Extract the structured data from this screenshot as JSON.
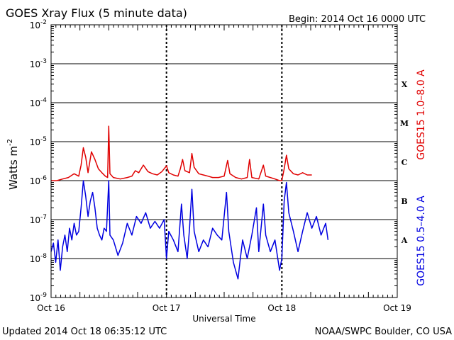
{
  "header": {
    "title": "GOES Xray Flux (5 minute data)",
    "begin": "Begin:  2014 Oct 16 0000 UTC"
  },
  "footer": {
    "updated": "Updated 2014 Oct 18 06:35:12 UTC",
    "source": "NOAA/SWPC Boulder, CO USA"
  },
  "chart_data": {
    "type": "line",
    "title": "GOES Xray Flux (5 minute data)",
    "xlabel": "Universal Time",
    "ylabel": "Watts m",
    "ylabel_exp": "-2",
    "yscale": "log",
    "ylim": [
      1e-09,
      0.01
    ],
    "xlim_days": [
      0,
      3
    ],
    "x_ticks": [
      {
        "label": "Oct 16",
        "day": 0
      },
      {
        "label": "Oct 17",
        "day": 1
      },
      {
        "label": "Oct 18",
        "day": 2
      },
      {
        "label": "Oct 19",
        "day": 3
      }
    ],
    "y_ticks": [
      {
        "base": "10",
        "exp": "-9",
        "value": 1e-09
      },
      {
        "base": "10",
        "exp": "-8",
        "value": 1e-08
      },
      {
        "base": "10",
        "exp": "-7",
        "value": 1e-07
      },
      {
        "base": "10",
        "exp": "-6",
        "value": 1e-06
      },
      {
        "base": "10",
        "exp": "-5",
        "value": 1e-05
      },
      {
        "base": "10",
        "exp": "-4",
        "value": 0.0001
      },
      {
        "base": "10",
        "exp": "-3",
        "value": 0.001
      },
      {
        "base": "10",
        "exp": "-2",
        "value": 0.01
      }
    ],
    "flare_classes": [
      {
        "label": "X",
        "value": 0.0003
      },
      {
        "label": "M",
        "value": 3e-05
      },
      {
        "label": "C",
        "value": 3e-06
      },
      {
        "label": "B",
        "value": 3e-07
      },
      {
        "label": "A",
        "value": 3e-08
      }
    ],
    "grid": true,
    "series": [
      {
        "name": "GOES15 1.0–8.0 A",
        "color": "#e00000",
        "points": [
          [
            0.0,
            1e-06
          ],
          [
            0.05,
            1e-06
          ],
          [
            0.1,
            1.1e-06
          ],
          [
            0.15,
            1.2e-06
          ],
          [
            0.2,
            1.5e-06
          ],
          [
            0.24,
            1.3e-06
          ],
          [
            0.26,
            2.5e-06
          ],
          [
            0.28,
            7e-06
          ],
          [
            0.3,
            4e-06
          ],
          [
            0.32,
            1.6e-06
          ],
          [
            0.35,
            5.5e-06
          ],
          [
            0.38,
            3.5e-06
          ],
          [
            0.41,
            2e-06
          ],
          [
            0.44,
            1.6e-06
          ],
          [
            0.47,
            1.3e-06
          ],
          [
            0.49,
            1.2e-06
          ],
          [
            0.5,
            2.5e-05
          ],
          [
            0.51,
            1.5e-06
          ],
          [
            0.54,
            1.2e-06
          ],
          [
            0.6,
            1.1e-06
          ],
          [
            0.66,
            1.2e-06
          ],
          [
            0.7,
            1.3e-06
          ],
          [
            0.73,
            1.8e-06
          ],
          [
            0.76,
            1.6e-06
          ],
          [
            0.8,
            2.5e-06
          ],
          [
            0.84,
            1.7e-06
          ],
          [
            0.88,
            1.5e-06
          ],
          [
            0.92,
            1.4e-06
          ],
          [
            0.96,
            1.7e-06
          ],
          [
            1.0,
            2.4e-06
          ],
          [
            1.02,
            1.6e-06
          ],
          [
            1.06,
            1.4e-06
          ],
          [
            1.1,
            1.3e-06
          ],
          [
            1.12,
            2e-06
          ],
          [
            1.14,
            3.5e-06
          ],
          [
            1.16,
            1.8e-06
          ],
          [
            1.2,
            1.6e-06
          ],
          [
            1.22,
            5e-06
          ],
          [
            1.24,
            2.2e-06
          ],
          [
            1.28,
            1.5e-06
          ],
          [
            1.32,
            1.4e-06
          ],
          [
            1.36,
            1.3e-06
          ],
          [
            1.4,
            1.2e-06
          ],
          [
            1.45,
            1.2e-06
          ],
          [
            1.5,
            1.3e-06
          ],
          [
            1.53,
            3.3e-06
          ],
          [
            1.55,
            1.5e-06
          ],
          [
            1.6,
            1.2e-06
          ],
          [
            1.65,
            1.1e-06
          ],
          [
            1.7,
            1.2e-06
          ],
          [
            1.72,
            3.5e-06
          ],
          [
            1.74,
            1.2e-06
          ],
          [
            1.8,
            1.1e-06
          ],
          [
            1.84,
            2.5e-06
          ],
          [
            1.86,
            1.3e-06
          ],
          [
            1.9,
            1.2e-06
          ],
          [
            1.94,
            1.1e-06
          ],
          [
            1.98,
            1e-06
          ],
          [
            2.0,
            1e-06
          ],
          [
            2.02,
            2e-06
          ],
          [
            2.04,
            4.5e-06
          ],
          [
            2.06,
            2e-06
          ],
          [
            2.1,
            1.5e-06
          ],
          [
            2.14,
            1.4e-06
          ],
          [
            2.18,
            1.6e-06
          ],
          [
            2.22,
            1.4e-06
          ],
          [
            2.26,
            1.4e-06
          ]
        ]
      },
      {
        "name": "GOES15 0.5–4.0 A",
        "color": "#0000e0",
        "points": [
          [
            0.0,
            1.5e-08
          ],
          [
            0.02,
            2.5e-08
          ],
          [
            0.04,
            8e-09
          ],
          [
            0.06,
            3e-08
          ],
          [
            0.08,
            5e-09
          ],
          [
            0.1,
            2e-08
          ],
          [
            0.12,
            4e-08
          ],
          [
            0.14,
            1.5e-08
          ],
          [
            0.16,
            6e-08
          ],
          [
            0.18,
            3e-08
          ],
          [
            0.2,
            8e-08
          ],
          [
            0.22,
            4e-08
          ],
          [
            0.24,
            5e-08
          ],
          [
            0.26,
            2e-07
          ],
          [
            0.28,
            1e-06
          ],
          [
            0.3,
            4e-07
          ],
          [
            0.32,
            1.2e-07
          ],
          [
            0.34,
            3e-07
          ],
          [
            0.36,
            5e-07
          ],
          [
            0.38,
            2e-07
          ],
          [
            0.4,
            6e-08
          ],
          [
            0.42,
            4e-08
          ],
          [
            0.44,
            3e-08
          ],
          [
            0.46,
            6e-08
          ],
          [
            0.48,
            5e-08
          ],
          [
            0.5,
            1e-06
          ],
          [
            0.51,
            4e-08
          ],
          [
            0.54,
            3e-08
          ],
          [
            0.58,
            1.2e-08
          ],
          [
            0.62,
            2.5e-08
          ],
          [
            0.66,
            8e-08
          ],
          [
            0.7,
            4e-08
          ],
          [
            0.74,
            1.2e-07
          ],
          [
            0.78,
            8e-08
          ],
          [
            0.82,
            1.5e-07
          ],
          [
            0.86,
            6e-08
          ],
          [
            0.9,
            9e-08
          ],
          [
            0.94,
            6e-08
          ],
          [
            0.98,
            1e-07
          ],
          [
            1.0,
            1e-08
          ],
          [
            1.02,
            5e-08
          ],
          [
            1.06,
            3e-08
          ],
          [
            1.1,
            1.5e-08
          ],
          [
            1.13,
            2.5e-07
          ],
          [
            1.15,
            4e-08
          ],
          [
            1.18,
            1e-08
          ],
          [
            1.2,
            6e-08
          ],
          [
            1.22,
            6e-07
          ],
          [
            1.24,
            5e-08
          ],
          [
            1.28,
            1.5e-08
          ],
          [
            1.32,
            3e-08
          ],
          [
            1.36,
            2e-08
          ],
          [
            1.4,
            6e-08
          ],
          [
            1.44,
            4e-08
          ],
          [
            1.48,
            3e-08
          ],
          [
            1.52,
            5e-07
          ],
          [
            1.54,
            5e-08
          ],
          [
            1.58,
            8e-09
          ],
          [
            1.62,
            3e-09
          ],
          [
            1.64,
            1e-08
          ],
          [
            1.66,
            3e-08
          ],
          [
            1.7,
            1e-08
          ],
          [
            1.74,
            4e-08
          ],
          [
            1.78,
            2e-07
          ],
          [
            1.8,
            1.5e-08
          ],
          [
            1.84,
            2.5e-07
          ],
          [
            1.86,
            4e-08
          ],
          [
            1.9,
            1.5e-08
          ],
          [
            1.94,
            3e-08
          ],
          [
            1.98,
            5e-09
          ],
          [
            2.0,
            1e-08
          ],
          [
            2.02,
            3e-07
          ],
          [
            2.04,
            9e-07
          ],
          [
            2.06,
            1.5e-07
          ],
          [
            2.1,
            5e-08
          ],
          [
            2.14,
            1.5e-08
          ],
          [
            2.18,
            5e-08
          ],
          [
            2.22,
            1.5e-07
          ],
          [
            2.26,
            6e-08
          ],
          [
            2.3,
            1.2e-07
          ],
          [
            2.34,
            4e-08
          ],
          [
            2.38,
            8e-08
          ],
          [
            2.4,
            3e-08
          ]
        ]
      }
    ]
  }
}
